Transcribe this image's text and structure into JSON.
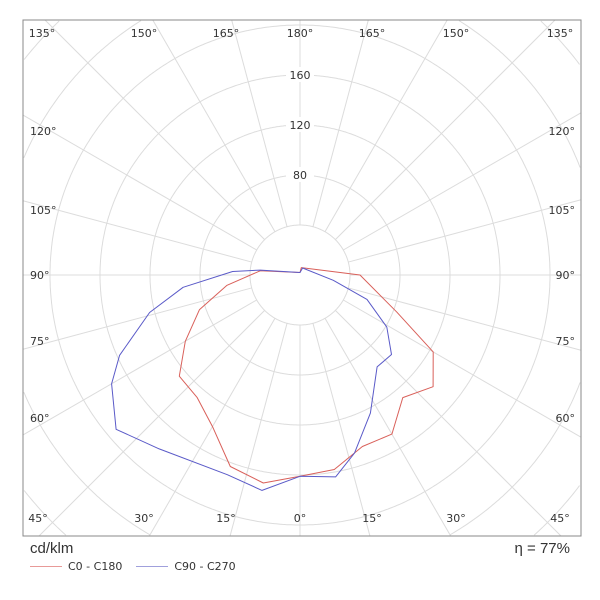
{
  "chart_data": {
    "type": "polar",
    "unit_label": "cd/klm",
    "efficiency_label": "η = 77%",
    "radial_ticks": [
      80,
      120,
      160
    ],
    "radial_rings": [
      40,
      80,
      120,
      160,
      200,
      240,
      280,
      320
    ],
    "angle_labels": {
      "bottom": [
        "45°",
        "30°",
        "15°",
        "0°",
        "15°",
        "30°",
        "45°"
      ],
      "left": [
        "60°",
        "75°",
        "90°",
        "105°",
        "120°"
      ],
      "right": [
        "60°",
        "75°",
        "90°",
        "105°",
        "120°"
      ],
      "top": [
        "135°",
        "150°",
        "165°",
        "180°",
        "165°",
        "150°",
        "135°"
      ]
    },
    "series": [
      {
        "name": "C0 - C180",
        "color": "#d9605a",
        "right_half": [
          [
            0,
            161
          ],
          [
            10,
            158
          ],
          [
            20,
            146
          ],
          [
            30,
            147
          ],
          [
            40,
            128
          ],
          [
            50,
            139
          ],
          [
            60,
            123
          ],
          [
            69,
            83
          ],
          [
            90,
            48
          ],
          [
            170,
            6
          ],
          [
            180,
            2
          ]
        ],
        "left_half": [
          [
            0,
            161
          ],
          [
            10,
            169
          ],
          [
            20,
            163
          ],
          [
            30,
            140
          ],
          [
            40,
            128
          ],
          [
            50,
            126
          ],
          [
            60,
            106
          ],
          [
            71,
            85
          ],
          [
            82,
            59
          ],
          [
            96,
            32
          ],
          [
            180,
            2
          ]
        ]
      },
      {
        "name": "C90 - C270",
        "color": "#5a5ac8",
        "right_half": [
          [
            0,
            161
          ],
          [
            10,
            164
          ],
          [
            17,
            149
          ],
          [
            27,
            124
          ],
          [
            40,
            96
          ],
          [
            49,
            97
          ],
          [
            59,
            81
          ],
          [
            70,
            57
          ],
          [
            81,
            27
          ],
          [
            160,
            6
          ],
          [
            180,
            2
          ]
        ],
        "left_half": [
          [
            0,
            161
          ],
          [
            10,
            175
          ],
          [
            20,
            170
          ],
          [
            39,
            179
          ],
          [
            50,
            192
          ],
          [
            60,
            174
          ],
          [
            66,
            158
          ],
          [
            76,
            124
          ],
          [
            84,
            94
          ],
          [
            93,
            54
          ],
          [
            97,
            32
          ],
          [
            180,
            2
          ]
        ]
      }
    ]
  }
}
